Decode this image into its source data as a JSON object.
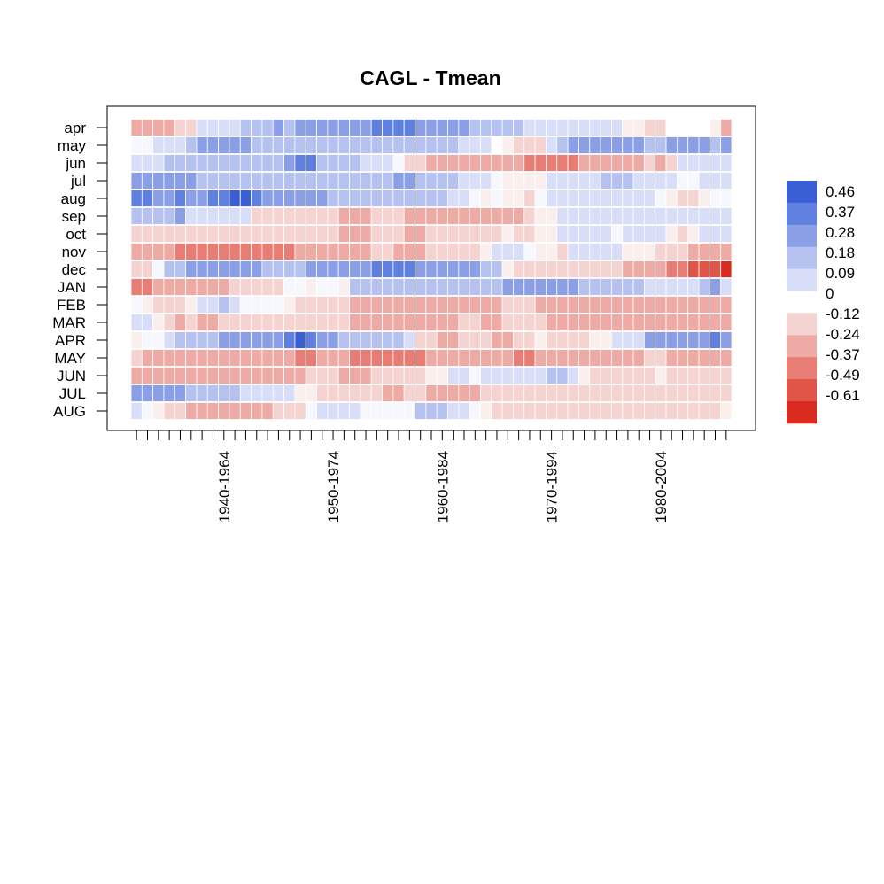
{
  "chart_data": {
    "type": "heatmap",
    "title": "CAGL - Tmean",
    "rows": [
      "apr",
      "may",
      "jun",
      "jul",
      "aug",
      "sep",
      "oct",
      "nov",
      "dec",
      "JAN",
      "FEB",
      "MAR",
      "APR",
      "MAY",
      "JUN",
      "JUL",
      "AUG"
    ],
    "x_tick_labels": [
      "1940-1964",
      "1950-1974",
      "1960-1984",
      "1970-1994",
      "1980-2004"
    ],
    "x_labeled_column_indices": [
      8,
      18,
      28,
      38,
      48
    ],
    "n_columns": 55,
    "legend": {
      "labels": [
        "0.46",
        "0.37",
        "0.28",
        "0.18",
        "0.09",
        "0",
        "-0.12",
        "-0.24",
        "-0.37",
        "-0.49",
        "-0.61"
      ],
      "colors": [
        "#3a5fd5",
        "#6080e0",
        "#8a9fe6",
        "#b5c1ee",
        "#d8def7",
        "#ffffff",
        "#f5d3d0",
        "#eeaaa5",
        "#e77d75",
        "#e15549",
        "#d92b1f"
      ]
    },
    "values": [
      [
        -0.3,
        -0.3,
        -0.25,
        -0.2,
        -0.15,
        -0.1,
        0.1,
        0.1,
        0.1,
        0.1,
        0.2,
        0.2,
        0.2,
        0.3,
        0.2,
        0.3,
        0.3,
        0.3,
        0.3,
        0.3,
        0.3,
        0.3,
        0.35,
        0.4,
        0.4,
        0.4,
        0.3,
        0.3,
        0.3,
        0.3,
        0.3,
        0.2,
        0.2,
        0.2,
        0.2,
        0.2,
        0.1,
        0.1,
        0.1,
        0.1,
        0.05,
        0.05,
        0.05,
        0.05,
        0.05,
        -0.05,
        -0.05,
        -0.1,
        -0.1,
        0,
        0,
        0,
        0,
        -0.05,
        -0.2
      ],
      [
        0.02,
        0.02,
        0.05,
        0.1,
        0.1,
        0.2,
        0.25,
        0.25,
        0.25,
        0.25,
        0.25,
        0.2,
        0.15,
        0.15,
        0.2,
        0.2,
        0.2,
        0.15,
        0.2,
        0.2,
        0.2,
        0.2,
        0.15,
        0.15,
        0.2,
        0.2,
        0.2,
        0.2,
        0.2,
        0.15,
        0.1,
        0.05,
        0.05,
        0,
        -0.05,
        -0.1,
        -0.1,
        -0.1,
        0.05,
        0.2,
        0.25,
        0.25,
        0.25,
        0.3,
        0.3,
        0.3,
        0.25,
        0.2,
        0.2,
        0.25,
        0.25,
        0.25,
        0.25,
        0.2,
        0.25
      ],
      [
        0.05,
        0.05,
        0.1,
        0.15,
        0.2,
        0.2,
        0.2,
        0.2,
        0.2,
        0.2,
        0.15,
        0.15,
        0.2,
        0.2,
        0.3,
        0.35,
        0.35,
        0.2,
        0.2,
        0.15,
        0.15,
        0.1,
        0.05,
        0.05,
        0.02,
        -0.1,
        -0.1,
        -0.2,
        -0.3,
        -0.3,
        -0.3,
        -0.3,
        -0.3,
        -0.3,
        -0.3,
        -0.3,
        -0.35,
        -0.35,
        -0.35,
        -0.35,
        -0.35,
        -0.3,
        -0.3,
        -0.3,
        -0.2,
        -0.2,
        -0.2,
        -0.15,
        -0.2,
        -0.1,
        0.1,
        0.1,
        0.1,
        0.1,
        0.1
      ],
      [
        0.3,
        0.3,
        0.3,
        0.25,
        0.25,
        0.25,
        0.2,
        0.2,
        0.15,
        0.15,
        0.15,
        0.15,
        0.15,
        0.15,
        0.2,
        0.2,
        0.2,
        0.15,
        0.15,
        0.15,
        0.15,
        0.15,
        0.15,
        0.2,
        0.25,
        0.25,
        0.2,
        0.2,
        0.15,
        0.15,
        0.1,
        0.1,
        0.05,
        0.02,
        -0.05,
        -0.05,
        -0.05,
        -0.05,
        0.05,
        0.05,
        0.05,
        0.1,
        0.1,
        0.15,
        0.15,
        0.15,
        0.1,
        0.1,
        0.05,
        0.05,
        0.02,
        0.02,
        0.05,
        0.1,
        0.1
      ],
      [
        0.35,
        0.35,
        0.3,
        0.3,
        0.35,
        0.3,
        0.25,
        0.4,
        0.4,
        0.45,
        0.45,
        0.4,
        0.3,
        0.3,
        0.3,
        0.3,
        0.3,
        0.25,
        0.2,
        0.2,
        0.2,
        0.15,
        0.15,
        0.15,
        0.2,
        0.2,
        0.2,
        0.15,
        0.15,
        0.1,
        0.1,
        0.02,
        -0.05,
        0.02,
        -0.05,
        -0.05,
        -0.1,
        0.02,
        0.1,
        0.1,
        0.05,
        0.1,
        0.1,
        0.1,
        0.1,
        0.1,
        0.05,
        0.05,
        0.02,
        -0.05,
        -0.1,
        -0.1,
        -0.05,
        0.02,
        0.02
      ],
      [
        0.15,
        0.15,
        0.2,
        0.2,
        0.25,
        0.1,
        0.1,
        0.1,
        0.1,
        0.1,
        0.05,
        -0.1,
        -0.1,
        -0.1,
        -0.15,
        -0.15,
        -0.15,
        -0.15,
        -0.15,
        -0.2,
        -0.2,
        -0.2,
        -0.15,
        -0.15,
        -0.15,
        -0.2,
        -0.2,
        -0.2,
        -0.25,
        -0.25,
        -0.25,
        -0.25,
        -0.25,
        -0.3,
        -0.2,
        -0.2,
        -0.1,
        -0.05,
        -0.05,
        0.1,
        0.1,
        0.1,
        0.1,
        0.1,
        0.1,
        0.05,
        0.05,
        0.05,
        0.05,
        0.05,
        0.1,
        0.05,
        0.1,
        0.1,
        0.1
      ],
      [
        -0.1,
        -0.1,
        -0.1,
        -0.15,
        -0.1,
        -0.1,
        -0.1,
        -0.1,
        -0.15,
        -0.15,
        -0.15,
        -0.15,
        -0.1,
        -0.1,
        -0.15,
        -0.15,
        -0.15,
        -0.15,
        -0.15,
        -0.2,
        -0.2,
        -0.2,
        -0.15,
        -0.15,
        -0.15,
        -0.2,
        -0.2,
        -0.15,
        -0.15,
        -0.15,
        -0.1,
        -0.1,
        -0.1,
        -0.1,
        -0.05,
        -0.1,
        -0.1,
        -0.05,
        -0.05,
        0.05,
        0.05,
        0.05,
        0.05,
        0.05,
        0.02,
        0.05,
        0.05,
        0.05,
        0.05,
        -0.05,
        -0.1,
        -0.05,
        0.05,
        0.05,
        0.05
      ],
      [
        -0.2,
        -0.25,
        -0.3,
        -0.3,
        -0.35,
        -0.4,
        -0.4,
        -0.4,
        -0.35,
        -0.35,
        -0.35,
        -0.35,
        -0.35,
        -0.35,
        -0.35,
        -0.3,
        -0.3,
        -0.25,
        -0.3,
        -0.3,
        -0.25,
        -0.25,
        -0.15,
        -0.15,
        -0.2,
        -0.2,
        -0.2,
        -0.15,
        -0.15,
        -0.15,
        -0.1,
        -0.1,
        -0.05,
        0.05,
        0.05,
        0.05,
        0.02,
        -0.05,
        -0.05,
        -0.1,
        0.05,
        0.05,
        0.05,
        0.05,
        0.05,
        -0.05,
        -0.05,
        -0.05,
        -0.1,
        -0.1,
        -0.15,
        -0.2,
        -0.2,
        -0.2,
        -0.25
      ],
      [
        -0.1,
        -0.1,
        0.02,
        0.15,
        0.2,
        0.25,
        0.3,
        0.3,
        0.3,
        0.25,
        0.25,
        0.25,
        0.2,
        0.2,
        0.2,
        0.2,
        0.25,
        0.25,
        0.25,
        0.25,
        0.3,
        0.3,
        0.35,
        0.4,
        0.4,
        0.35,
        0.3,
        0.3,
        0.3,
        0.3,
        0.25,
        0.25,
        0.2,
        0.2,
        -0.05,
        -0.1,
        -0.1,
        -0.1,
        -0.1,
        -0.1,
        -0.1,
        -0.15,
        -0.15,
        -0.15,
        -0.15,
        -0.2,
        -0.2,
        -0.25,
        -0.25,
        -0.4,
        -0.4,
        -0.45,
        -0.45,
        -0.45,
        -0.6
      ],
      [
        -0.35,
        -0.35,
        -0.3,
        -0.3,
        -0.25,
        -0.25,
        -0.25,
        -0.2,
        -0.2,
        -0.15,
        -0.15,
        -0.15,
        -0.1,
        -0.1,
        0.02,
        0.02,
        -0.05,
        0.02,
        0.02,
        -0.05,
        0.2,
        0.2,
        0.2,
        0.2,
        0.2,
        0.2,
        0.15,
        0.15,
        0.15,
        0.15,
        0.15,
        0.15,
        0.2,
        0.15,
        0.3,
        0.25,
        0.25,
        0.25,
        0.25,
        0.25,
        0.25,
        0.2,
        0.2,
        0.2,
        0.15,
        0.15,
        0.2,
        0.05,
        0.05,
        0.05,
        0.05,
        0.1,
        0.2,
        0.25,
        0.1
      ],
      [
        0.02,
        -0.05,
        -0.1,
        -0.15,
        -0.1,
        -0.05,
        0.1,
        0.1,
        0.15,
        0.1,
        0.02,
        0.02,
        0.02,
        0.02,
        -0.05,
        -0.1,
        -0.15,
        -0.1,
        -0.15,
        -0.15,
        -0.2,
        -0.2,
        -0.25,
        -0.25,
        -0.25,
        -0.25,
        -0.25,
        -0.2,
        -0.2,
        -0.25,
        -0.25,
        -0.2,
        -0.2,
        -0.25,
        -0.15,
        -0.15,
        -0.15,
        -0.2,
        -0.2,
        -0.25,
        -0.25,
        -0.25,
        -0.2,
        -0.2,
        -0.25,
        -0.25,
        -0.3,
        -0.3,
        -0.25,
        -0.3,
        -0.25,
        -0.25,
        -0.25,
        -0.2,
        -0.2
      ],
      [
        0.1,
        0.05,
        -0.05,
        -0.1,
        -0.2,
        -0.15,
        -0.2,
        -0.2,
        -0.15,
        -0.15,
        -0.15,
        -0.1,
        -0.1,
        -0.1,
        -0.1,
        -0.1,
        -0.15,
        -0.15,
        -0.15,
        -0.15,
        -0.25,
        -0.25,
        -0.25,
        -0.25,
        -0.3,
        -0.3,
        -0.3,
        -0.25,
        -0.2,
        -0.2,
        -0.15,
        -0.15,
        -0.2,
        -0.2,
        -0.15,
        -0.15,
        -0.15,
        -0.15,
        -0.2,
        -0.2,
        -0.2,
        -0.25,
        -0.3,
        -0.3,
        -0.25,
        -0.25,
        -0.3,
        -0.25,
        -0.25,
        -0.25,
        -0.2,
        -0.2,
        -0.2,
        -0.2,
        -0.3
      ],
      [
        -0.05,
        0.02,
        0.02,
        0.05,
        0.15,
        0.2,
        0.2,
        0.2,
        0.25,
        0.25,
        0.25,
        0.3,
        0.3,
        0.3,
        0.4,
        0.45,
        0.4,
        0.3,
        0.3,
        0.2,
        0.2,
        0.2,
        0.15,
        0.15,
        0.15,
        0.1,
        -0.1,
        -0.15,
        -0.2,
        -0.2,
        -0.1,
        -0.1,
        -0.15,
        -0.2,
        -0.2,
        -0.15,
        -0.1,
        -0.05,
        -0.1,
        -0.15,
        -0.15,
        -0.1,
        -0.05,
        -0.05,
        0.1,
        0.1,
        0.05,
        0.3,
        0.3,
        0.3,
        0.3,
        0.3,
        0.3,
        0.35,
        0.3
      ],
      [
        -0.1,
        -0.2,
        -0.25,
        -0.25,
        -0.3,
        -0.3,
        -0.3,
        -0.3,
        -0.3,
        -0.3,
        -0.3,
        -0.3,
        -0.3,
        -0.3,
        -0.3,
        -0.35,
        -0.35,
        -0.3,
        -0.3,
        -0.3,
        -0.35,
        -0.35,
        -0.4,
        -0.4,
        -0.35,
        -0.35,
        -0.35,
        -0.3,
        -0.3,
        -0.3,
        -0.3,
        -0.3,
        -0.3,
        -0.3,
        -0.3,
        -0.35,
        -0.35,
        -0.3,
        -0.3,
        -0.3,
        -0.25,
        -0.25,
        -0.2,
        -0.2,
        -0.25,
        -0.25,
        -0.25,
        -0.15,
        -0.15,
        -0.25,
        -0.25,
        -0.3,
        -0.3,
        -0.3,
        -0.3
      ],
      [
        -0.25,
        -0.25,
        -0.25,
        -0.25,
        -0.25,
        -0.25,
        -0.25,
        -0.25,
        -0.25,
        -0.25,
        -0.25,
        -0.25,
        -0.2,
        -0.2,
        -0.2,
        -0.2,
        -0.15,
        -0.15,
        -0.15,
        -0.2,
        -0.2,
        -0.2,
        -0.1,
        -0.1,
        -0.1,
        -0.15,
        -0.1,
        -0.05,
        -0.05,
        0.05,
        0.05,
        0.02,
        0.05,
        0.1,
        0.05,
        0.05,
        0.1,
        0.1,
        0.15,
        0.15,
        0.1,
        -0.05,
        -0.1,
        -0.15,
        -0.1,
        -0.1,
        -0.1,
        -0.1,
        -0.05,
        -0.1,
        -0.1,
        -0.1,
        -0.1,
        -0.1,
        -0.1
      ],
      [
        0.3,
        0.3,
        0.3,
        0.25,
        0.3,
        0.2,
        0.2,
        0.2,
        0.15,
        0.15,
        0.1,
        0.1,
        0.1,
        0.1,
        0.05,
        -0.05,
        -0.05,
        -0.1,
        -0.15,
        -0.15,
        -0.15,
        -0.15,
        -0.15,
        -0.2,
        -0.2,
        -0.15,
        -0.15,
        -0.2,
        -0.2,
        -0.2,
        -0.2,
        -0.2,
        -0.15,
        -0.15,
        -0.15,
        -0.15,
        -0.15,
        -0.15,
        -0.15,
        -0.15,
        -0.15,
        -0.15,
        -0.15,
        -0.15,
        -0.15,
        -0.15,
        -0.15,
        -0.1,
        -0.1,
        -0.15,
        -0.15,
        -0.1,
        -0.1,
        -0.1,
        -0.1
      ],
      [
        0.05,
        0.02,
        -0.05,
        -0.15,
        -0.15,
        -0.2,
        -0.2,
        -0.2,
        -0.25,
        -0.25,
        -0.2,
        -0.2,
        -0.2,
        -0.15,
        -0.15,
        -0.15,
        0.02,
        0.05,
        0.05,
        0.05,
        0.05,
        0.02,
        0.02,
        0.02,
        0.02,
        0.02,
        0.15,
        0.15,
        0.15,
        0.05,
        0.05,
        0.02,
        -0.05,
        -0.1,
        -0.1,
        -0.1,
        -0.1,
        -0.15,
        -0.15,
        -0.15,
        -0.15,
        -0.15,
        -0.15,
        -0.1,
        -0.1,
        -0.1,
        -0.1,
        -0.1,
        -0.1,
        -0.1,
        -0.1,
        -0.1,
        -0.1,
        -0.1,
        -0.05
      ]
    ]
  }
}
